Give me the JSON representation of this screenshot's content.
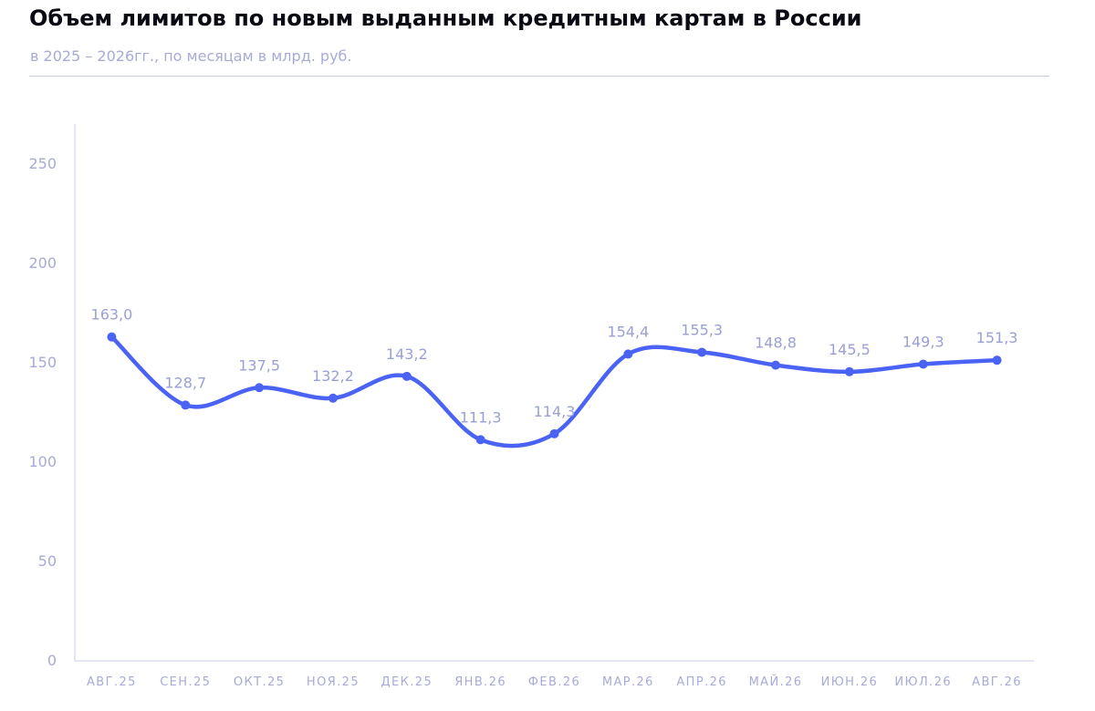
{
  "chart_data": {
    "type": "line",
    "title": "Объем лимитов по новым выданным кредитным картам в России",
    "subtitle": "в 2025 – 2026гг., по месяцам в млрд. руб.",
    "categories": [
      "АВГ.25",
      "СЕН.25",
      "ОКТ.25",
      "НОЯ.25",
      "ДЕК.25",
      "ЯНВ.26",
      "ФЕВ.26",
      "МАР.26",
      "АПР.26",
      "МАЙ.26",
      "ИЮН.26",
      "ИЮЛ.26",
      "АВГ.26"
    ],
    "values": [
      163.0,
      128.7,
      137.5,
      132.2,
      143.2,
      111.3,
      114.3,
      154.4,
      155.3,
      148.8,
      145.5,
      149.3,
      151.3
    ],
    "value_labels": [
      "163,0",
      "128,7",
      "137,5",
      "132,2",
      "143,2",
      "111,3",
      "114,3",
      "154,4",
      "155,3",
      "148,8",
      "145,5",
      "149,3",
      "151,3"
    ],
    "yticks": [
      0,
      50,
      100,
      150,
      200,
      250
    ],
    "ylim": [
      0,
      270
    ],
    "xlabel": "",
    "ylabel": "",
    "grid": false,
    "line_color": "#4a63f5",
    "text_color": "#a7abd6"
  }
}
